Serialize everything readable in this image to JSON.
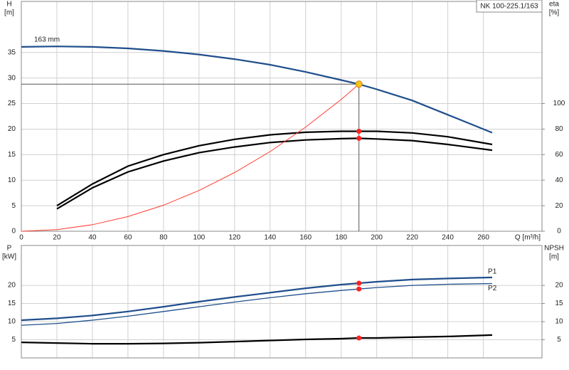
{
  "chart_data": [
    {
      "type": "line",
      "ylabel": [
        "H",
        "[m]"
      ],
      "y2label": [
        "eta",
        "[%]"
      ],
      "xlabel": "Q [m³/h]",
      "annotation": "NK 100-225.1/163",
      "xlim": [
        0,
        293
      ],
      "xticks": [
        0,
        20,
        40,
        60,
        80,
        100,
        120,
        140,
        160,
        180,
        200,
        220,
        240,
        260
      ],
      "ylim": [
        0,
        45
      ],
      "yticks": [
        0,
        5,
        10,
        15,
        20,
        25,
        30,
        35
      ],
      "y2lim": [
        0,
        180
      ],
      "y2ticks": [
        0,
        20,
        40,
        60,
        80,
        100
      ],
      "grid": true,
      "duty_point": {
        "x": 190,
        "y": 28.8,
        "color": "#f5c518"
      },
      "series": [
        {
          "name": "163 mm",
          "color": "#1f4e8c",
          "x": [
            0,
            20,
            40,
            60,
            80,
            100,
            120,
            140,
            160,
            180,
            190,
            200,
            220,
            240,
            265
          ],
          "values": [
            36.1,
            36.2,
            36.1,
            35.8,
            35.3,
            34.6,
            33.7,
            32.6,
            31.2,
            29.6,
            28.8,
            27.8,
            25.6,
            22.8,
            19.3
          ]
        },
        {
          "color": "#000000",
          "axis": "y2",
          "duty_marker": true,
          "x": [
            20,
            40,
            60,
            80,
            100,
            120,
            140,
            160,
            180,
            190,
            200,
            220,
            240,
            265
          ],
          "values": [
            20,
            37,
            51,
            60,
            67,
            72,
            75.5,
            77.5,
            78.3,
            78.3,
            78.3,
            77,
            74,
            68
          ]
        },
        {
          "color": "#000000",
          "axis": "y2",
          "duty_marker": true,
          "x": [
            20,
            40,
            60,
            80,
            100,
            120,
            140,
            160,
            180,
            190,
            200,
            220,
            240,
            265
          ],
          "values": [
            17.5,
            34,
            46.5,
            55,
            61.5,
            66,
            69.5,
            71.5,
            72.5,
            72.8,
            72.3,
            71,
            68,
            63.5
          ]
        },
        {
          "color": "#ff3b30",
          "x": [
            0,
            20,
            40,
            60,
            80,
            100,
            120,
            140,
            160,
            180,
            190
          ],
          "values": [
            0,
            0.32,
            1.28,
            2.87,
            5.1,
            7.98,
            11.5,
            15.6,
            20.4,
            25.8,
            28.8
          ]
        }
      ]
    },
    {
      "type": "line",
      "ylabel": [
        "P",
        "[kW]"
      ],
      "y2label": [
        "NPSH",
        "[m]"
      ],
      "xlim": [
        0,
        293
      ],
      "xticks": [
        0,
        20,
        40,
        60,
        80,
        100,
        120,
        140,
        160,
        180,
        200,
        220,
        240,
        260
      ],
      "xtick_labels": false,
      "ylim": [
        0,
        31
      ],
      "yticks": [
        5,
        10,
        15,
        20
      ],
      "y2lim": [
        0,
        31
      ],
      "y2ticks": [
        5,
        10,
        15,
        20
      ],
      "grid": true,
      "series": [
        {
          "name": "P1",
          "color": "#1f4e8c",
          "duty_marker": true,
          "x": [
            0,
            20,
            40,
            60,
            80,
            100,
            120,
            140,
            160,
            180,
            190,
            200,
            220,
            240,
            265
          ],
          "values": [
            10.4,
            10.9,
            11.7,
            12.8,
            14.1,
            15.5,
            16.8,
            18.0,
            19.2,
            20.2,
            20.6,
            21.0,
            21.6,
            21.9,
            22.2
          ]
        },
        {
          "name": "P2",
          "color": "#1f4e8c",
          "duty_marker": true,
          "x": [
            0,
            20,
            40,
            60,
            80,
            100,
            120,
            140,
            160,
            180,
            190,
            200,
            220,
            240,
            265
          ],
          "values": [
            9.0,
            9.5,
            10.4,
            11.5,
            12.8,
            14.1,
            15.4,
            16.6,
            17.7,
            18.6,
            19.0,
            19.4,
            20.0,
            20.3,
            20.5
          ]
        },
        {
          "color": "#000000",
          "axis": "y2",
          "duty_marker": true,
          "x": [
            0,
            20,
            40,
            60,
            80,
            100,
            120,
            140,
            160,
            180,
            190,
            200,
            220,
            240,
            265
          ],
          "values": [
            4.3,
            4.1,
            3.9,
            3.9,
            4.0,
            4.2,
            4.5,
            4.8,
            5.1,
            5.3,
            5.5,
            5.5,
            5.7,
            5.9,
            6.3
          ]
        }
      ]
    }
  ]
}
